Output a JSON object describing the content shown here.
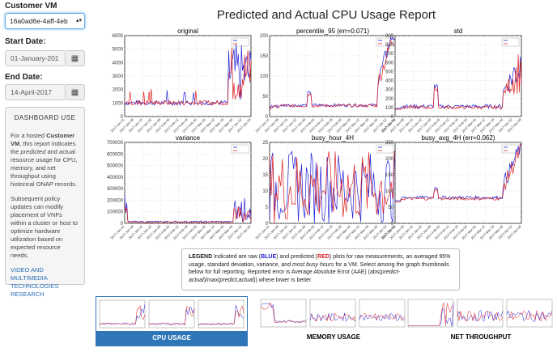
{
  "sidebar": {
    "customer_vm_label": "Customer VM",
    "customer_vm_value": "16a0ad6e-4aff-4eb",
    "start_date_label": "Start Date:",
    "start_date_value": "01-January-201",
    "end_date_label": "End Date:",
    "end_date_value": "14-April-2017",
    "dashboard_title": "DASHBOARD USE",
    "para1_a": "For a hosted ",
    "para1_b": "Customer VM",
    "para1_c": ", this report indicates the ",
    "para1_d": "predicted",
    "para1_e": " and actual resource usage for CPU, memory, and net throughput using historical ONAP records.",
    "para2": "Subsequent policy updates can modify placement of VNFs within a cluster or host to optimize hardware utilization based on expected resource needs.",
    "link": "VIDEO AND MULTIMEDIA TECHNOLOGIES RESEARCH"
  },
  "report_title": "Predicted and Actual CPU Usage Report",
  "legend": {
    "bold_label": "LEGEND",
    "t1": " Indicated are raw (",
    "blue": "BLUE",
    "t2": ") and predicted (",
    "red": "RED",
    "t3": ") plots for raw measurements, an averaged 95% usage, standard deviation, variance, and ",
    "italic": "most busy hours",
    "t4": " for a VM. Select among the graph thumbnails below for full reporting. Reported error is Average Absolute Error (AAE) (abs(",
    "it2": "predict-actual",
    "t5": ")/max(",
    "it3": "predict,actual",
    "t6": ")) where lower is better."
  },
  "charts": [
    {
      "title": "original",
      "yticks": [
        "6000",
        "5000",
        "4000",
        "3000",
        "2000",
        "1000",
        "0"
      ]
    },
    {
      "title": "percentile_95 (err=0.071)",
      "yticks": [
        "200",
        "150",
        "100",
        "50",
        "0"
      ]
    },
    {
      "title": "std",
      "yticks": [
        "900",
        "800",
        "700",
        "600",
        "500",
        "400",
        "300",
        "200",
        "100",
        "0"
      ]
    },
    {
      "title": "variance",
      "yticks": [
        "700000",
        "600000",
        "500000",
        "400000",
        "300000",
        "200000",
        "100000",
        "0"
      ]
    },
    {
      "title": "busy_hour_4H",
      "yticks": [
        "25",
        "20",
        "15",
        "10",
        "5",
        "0"
      ]
    },
    {
      "title": "busy_avg_4H (err=0.062)",
      "yticks": [
        "250",
        "200",
        "150",
        "100",
        "50",
        "0"
      ]
    }
  ],
  "xticks": [
    "2017-Jan-01",
    "2017-Jan-08",
    "2017-Jan-15",
    "2017-Jan-22",
    "2017-Jan-29",
    "2017-Feb-05",
    "2017-Feb-12",
    "2017-Feb-19",
    "2017-Feb-26",
    "2017-Mar-05",
    "2017-Mar-12",
    "2017-Mar-19",
    "2017-Mar-26",
    "2017-Apr-02",
    "2017-Apr-09"
  ],
  "thumbnails": [
    {
      "label": "CPU USAGE",
      "active": true
    },
    {
      "label": "MEMORY USAGE",
      "active": false
    },
    {
      "label": "NET THROUGHPUT",
      "active": false
    }
  ],
  "colors": {
    "actual": "#1f1fd8",
    "predicted": "#e02020",
    "active_tab": "#2f76b8"
  }
}
